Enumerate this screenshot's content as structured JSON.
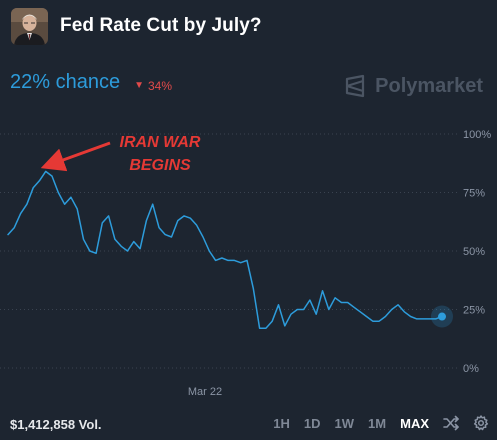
{
  "header": {
    "title": "Fed Rate Cut by July?"
  },
  "summary": {
    "chance": "22% chance",
    "delta": "34%",
    "delta_direction": "down"
  },
  "brand": {
    "name": "Polymarket"
  },
  "annotation": {
    "line1": "IRAN WAR",
    "line2": "BEGINS"
  },
  "footer": {
    "volume": "$1,412,858 Vol.",
    "ranges": [
      "1H",
      "1D",
      "1W",
      "1M",
      "MAX"
    ],
    "active_range": "MAX",
    "icons": [
      "shuffle-icon",
      "gear-icon"
    ]
  },
  "colors": {
    "background": "#1d2530",
    "line": "#2d9cdb",
    "accent": "#2d9cdb",
    "down": "#e04a4a",
    "annotation": "#e53935"
  },
  "chart_data": {
    "type": "line",
    "xlabel": "",
    "ylabel": "",
    "x_tick_labels": [
      "Mar 22"
    ],
    "y_tick_labels": [
      "100%",
      "75%",
      "50%",
      "25%",
      "0%"
    ],
    "ylim": [
      0,
      100
    ],
    "grid": true,
    "series": [
      {
        "values": [
          57,
          60,
          66,
          70,
          77,
          80,
          84,
          82,
          75,
          70,
          73,
          68,
          55,
          50,
          49,
          62,
          65,
          55,
          52,
          50,
          54,
          51,
          63,
          70,
          60,
          57,
          56,
          63,
          65,
          64,
          61,
          56,
          50,
          46,
          47,
          46,
          46,
          45,
          46,
          34,
          17,
          17,
          20,
          27,
          18,
          23,
          25,
          25,
          29,
          23,
          33,
          25,
          30,
          28,
          28,
          26,
          24,
          22,
          20,
          20,
          22,
          25,
          27,
          24,
          22,
          21,
          21,
          21,
          21,
          22
        ]
      }
    ],
    "last_value": 22
  }
}
